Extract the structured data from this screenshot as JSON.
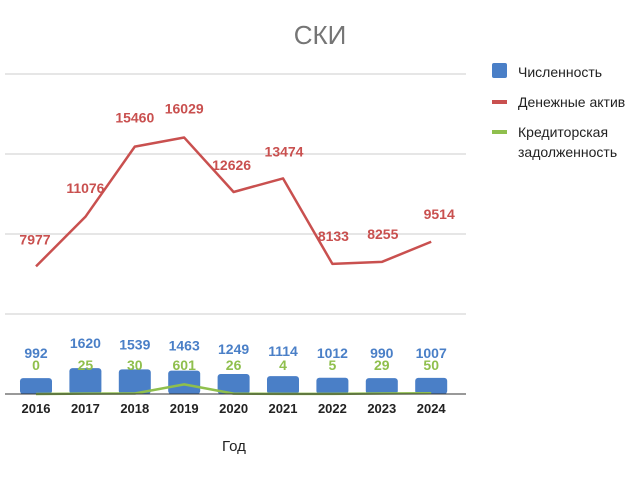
{
  "chart_data": {
    "type": "bar",
    "title": "СКИ",
    "xlabel": "Год",
    "ylabel": "",
    "categories": [
      "2016",
      "2017",
      "2018",
      "2019",
      "2020",
      "2021",
      "2022",
      "2023",
      "2024"
    ],
    "series": [
      {
        "name": "Численность",
        "type": "bar",
        "color": "#4a7fc7",
        "values": [
          992,
          1620,
          1539,
          1463,
          1249,
          1114,
          1012,
          990,
          1007
        ]
      },
      {
        "name": "Денежные актив",
        "type": "line",
        "color": "#c9504f",
        "values": [
          7977,
          11076,
          15460,
          16029,
          12626,
          13474,
          8133,
          8255,
          9514
        ]
      },
      {
        "name": "Кредиторская задолженность",
        "type": "line",
        "color": "#8fbf4d",
        "values": [
          0,
          25,
          30,
          601,
          26,
          4,
          5,
          29,
          50
        ]
      }
    ],
    "ylim": [
      0,
      20000
    ],
    "grid": true,
    "legend": "right"
  },
  "legend": {
    "items": [
      {
        "lines": [
          "Численность"
        ],
        "color": "#4a7fc7",
        "shape": "box"
      },
      {
        "lines": [
          "Денежные актив"
        ],
        "color": "#c9504f",
        "shape": "line"
      },
      {
        "lines": [
          "Кредиторская",
          "задолженность"
        ],
        "color": "#8fbf4d",
        "shape": "line"
      }
    ]
  }
}
